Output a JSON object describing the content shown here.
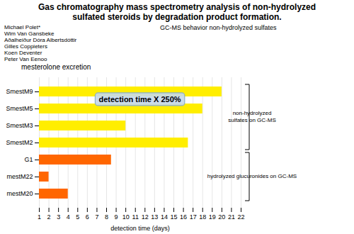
{
  "chart_data": {
    "type": "bar",
    "orientation": "horizontal",
    "title": "Gas chromatography mass spectrometry analysis of non-hydrolyzed\nsulfated steroids by degradation product formation.",
    "subtitle": "mesterolone excretion",
    "authors": [
      "Michael Polet*",
      "Wim Van Gansbeke",
      "Aðalheiður Dóra Albertsdóttir",
      "Gilles Coppieters",
      "Koen Deventer",
      "Peter Van Eenoo"
    ],
    "gcms_label": "GC-MS behavior non-hydrolyzed sulfates",
    "xlabel": "detection time (days)",
    "categories": [
      "SmestM9",
      "SmestM5",
      "SmestM3",
      "SmestM2",
      "G1",
      "mestM22",
      "mestM20"
    ],
    "values": [
      20,
      18,
      10,
      16.5,
      8.5,
      2,
      4
    ],
    "colors": [
      "#FFEE00",
      "#FFEE00",
      "#FFEE00",
      "#FFEE00",
      "#FF6600",
      "#FF6600",
      "#FF6600"
    ],
    "xlim": [
      1,
      22
    ],
    "xticks": [
      1,
      2,
      3,
      4,
      5,
      6,
      7,
      8,
      9,
      10,
      11,
      12,
      13,
      14,
      15,
      16,
      17,
      18,
      19,
      20,
      21,
      22
    ],
    "grid": true,
    "annotation_box": "detection time X 250%",
    "bracket_top": "non-hydrolyzed\nsulfates on GC-MS",
    "bracket_bottom": "hydrolyzed glucuronides on GC-MS"
  }
}
